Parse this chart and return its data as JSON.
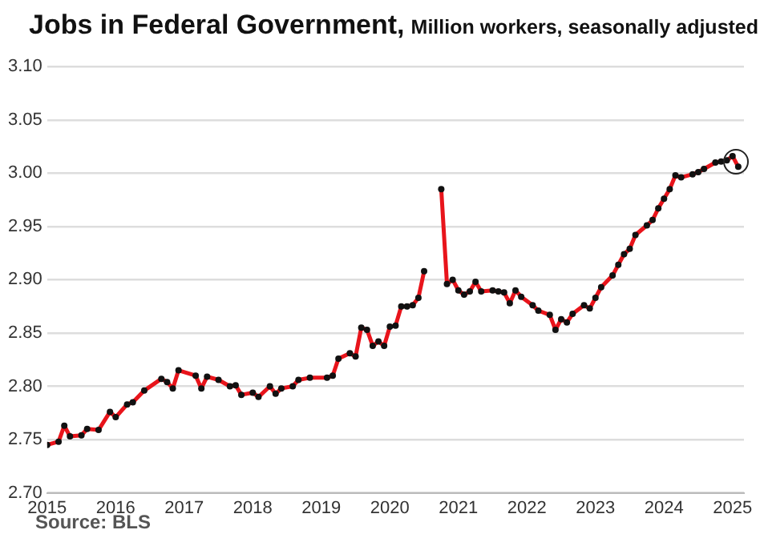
{
  "chart_data": {
    "type": "line",
    "title": "Jobs in Federal Government,",
    "subtitle": "Million workers, seasonally adjusted",
    "annotations": [
      "Source: BLS"
    ],
    "x": [
      "2015-01",
      "2015-03",
      "2015-04",
      "2015-05",
      "2015-07",
      "2015-08",
      "2015-10",
      "2015-12",
      "2016-01",
      "2016-03",
      "2016-04",
      "2016-06",
      "2016-09",
      "2016-10",
      "2016-11",
      "2016-12",
      "2017-03",
      "2017-04",
      "2017-05",
      "2017-07",
      "2017-09",
      "2017-10",
      "2017-11",
      "2018-01",
      "2018-02",
      "2018-04",
      "2018-05",
      "2018-06",
      "2018-08",
      "2018-09",
      "2018-11",
      "2019-02",
      "2019-03",
      "2019-04",
      "2019-06",
      "2019-07",
      "2019-08",
      "2019-09",
      "2019-10",
      "2019-11",
      "2019-12",
      "2020-01",
      "2020-02",
      "2020-03",
      "2020-04",
      "2020-05",
      "2020-06",
      "2020-07",
      "2020-08",
      "2020-09",
      "2020-10",
      "2020-11",
      "2020-12",
      "2021-01",
      "2021-02",
      "2021-03",
      "2021-04",
      "2021-05",
      "2021-07",
      "2021-08",
      "2021-09",
      "2021-10",
      "2021-11",
      "2021-12",
      "2022-02",
      "2022-03",
      "2022-05",
      "2022-06",
      "2022-07",
      "2022-08",
      "2022-09",
      "2022-11",
      "2022-12",
      "2023-01",
      "2023-02",
      "2023-04",
      "2023-05",
      "2023-06",
      "2023-07",
      "2023-08",
      "2023-10",
      "2023-11",
      "2023-12",
      "2024-01",
      "2024-02",
      "2024-03",
      "2024-04",
      "2024-06",
      "2024-07",
      "2024-08",
      "2024-10",
      "2024-11",
      "2024-12",
      "2025-01",
      "2025-02"
    ],
    "series": [
      {
        "color": "#e8141b",
        "values": [
          2.745,
          2.748,
          2.763,
          2.753,
          2.754,
          2.76,
          2.759,
          2.776,
          2.771,
          2.783,
          2.785,
          2.796,
          2.807,
          2.804,
          2.798,
          2.815,
          2.81,
          2.798,
          2.809,
          2.806,
          2.8,
          2.801,
          2.792,
          2.794,
          2.79,
          2.8,
          2.793,
          2.798,
          2.8,
          2.806,
          2.808,
          2.808,
          2.81,
          2.826,
          2.831,
          2.828,
          2.855,
          2.853,
          2.838,
          2.842,
          2.838,
          2.856,
          2.857,
          2.875,
          2.875,
          2.876,
          2.883,
          2.908,
          null,
          null,
          2.985,
          2.896,
          2.9,
          2.89,
          2.886,
          2.889,
          2.898,
          2.889,
          2.89,
          2.889,
          2.888,
          2.878,
          2.89,
          2.884,
          2.876,
          2.871,
          2.867,
          2.853,
          2.863,
          2.86,
          2.868,
          2.876,
          2.873,
          2.883,
          2.893,
          2.904,
          2.914,
          2.924,
          2.929,
          2.942,
          2.951,
          2.956,
          2.967,
          2.976,
          2.985,
          2.998,
          2.996,
          2.999,
          3.001,
          3.004,
          3.01,
          3.011,
          3.012,
          3.016,
          3.006
        ]
      }
    ],
    "xlim": [
      "2015-01",
      "2025-03"
    ],
    "xticks": [
      "2015",
      "2016",
      "2017",
      "2018",
      "2019",
      "2020",
      "2021",
      "2022",
      "2023",
      "2024",
      "2025"
    ],
    "ylim": [
      2.7,
      3.1
    ],
    "yticks": [
      {
        "value": 2.7,
        "label": "2.70"
      },
      {
        "value": 2.75,
        "label": "2.75"
      },
      {
        "value": 2.8,
        "label": "2.80"
      },
      {
        "value": 2.85,
        "label": "2.85"
      },
      {
        "value": 2.9,
        "label": "2.90"
      },
      {
        "value": 2.95,
        "label": "2.95"
      },
      {
        "value": 3.0,
        "label": "3.00"
      },
      {
        "value": 3.05,
        "label": "3.05"
      },
      {
        "value": 3.1,
        "label": "3.10"
      }
    ],
    "grid": "y",
    "legend": false,
    "marker": "circle",
    "line_style": "solid"
  }
}
